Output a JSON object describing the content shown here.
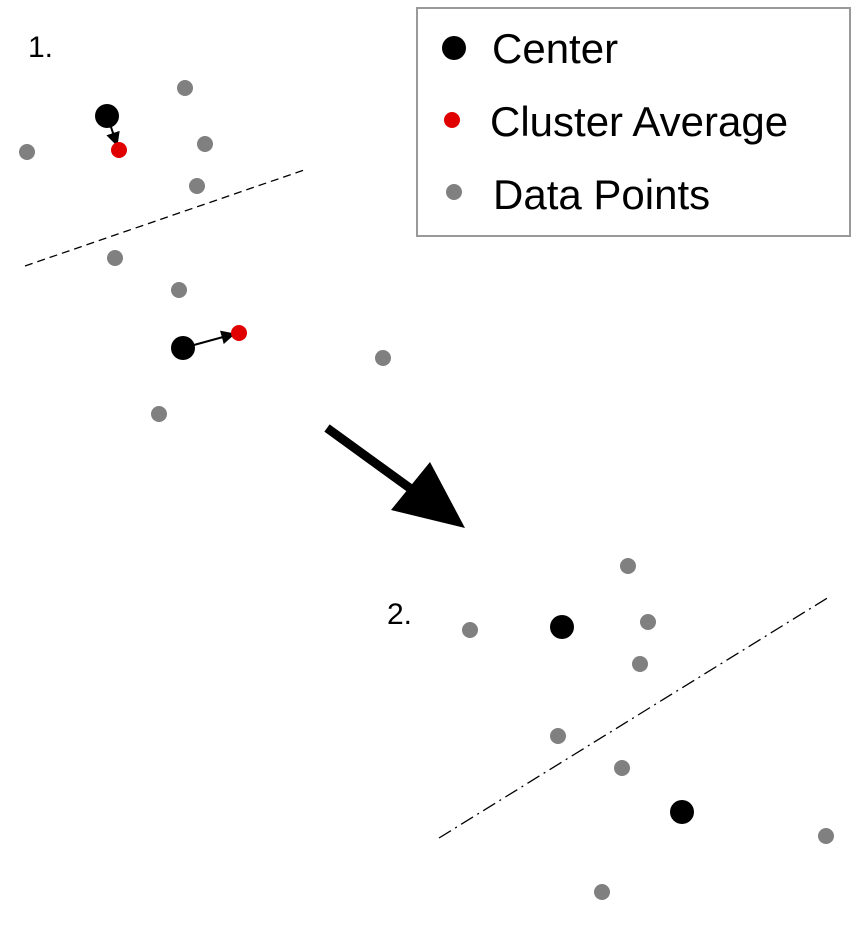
{
  "colors": {
    "center": "#000000",
    "cluster_average": "#e00000",
    "data_point": "#808080",
    "legend_border": "#999999"
  },
  "legend": {
    "items": [
      {
        "label": "Center",
        "marker": "black-dot"
      },
      {
        "label": "Cluster Average",
        "marker": "red-dot"
      },
      {
        "label": "Data Points",
        "marker": "gray-dot"
      }
    ]
  },
  "steps": [
    {
      "label": "1."
    },
    {
      "label": "2."
    }
  ]
}
